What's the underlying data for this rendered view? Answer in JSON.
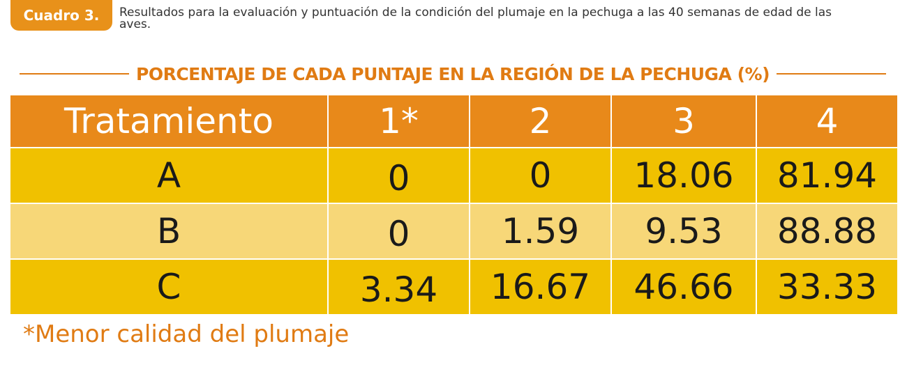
{
  "badge": {
    "label": "Cuadro 3."
  },
  "caption": "Resultados para la evaluación y puntuación de la condición del plumaje en la pechuga a las 40 semanas de edad de las aves.",
  "heading": "PORCENTAJE DE CADA PUNTAJE EN LA REGIÓN DE LA PECHUGA (%)",
  "table": {
    "headers": [
      "Tratamiento",
      "1*",
      "2",
      "3",
      "4"
    ],
    "rows": [
      [
        "A",
        "0",
        "0",
        "18.06",
        "81.94"
      ],
      [
        "B",
        "0",
        "1.59",
        "9.53",
        "88.88"
      ],
      [
        "C",
        "3.34",
        "16.67",
        "46.66",
        "33.33"
      ]
    ]
  },
  "footnote": "*Menor calidad del plumaje",
  "colors": {
    "accent": "#e8891a",
    "row_dark": "#f0c100",
    "row_light": "#f7d778",
    "heading_text": "#e07b13"
  }
}
